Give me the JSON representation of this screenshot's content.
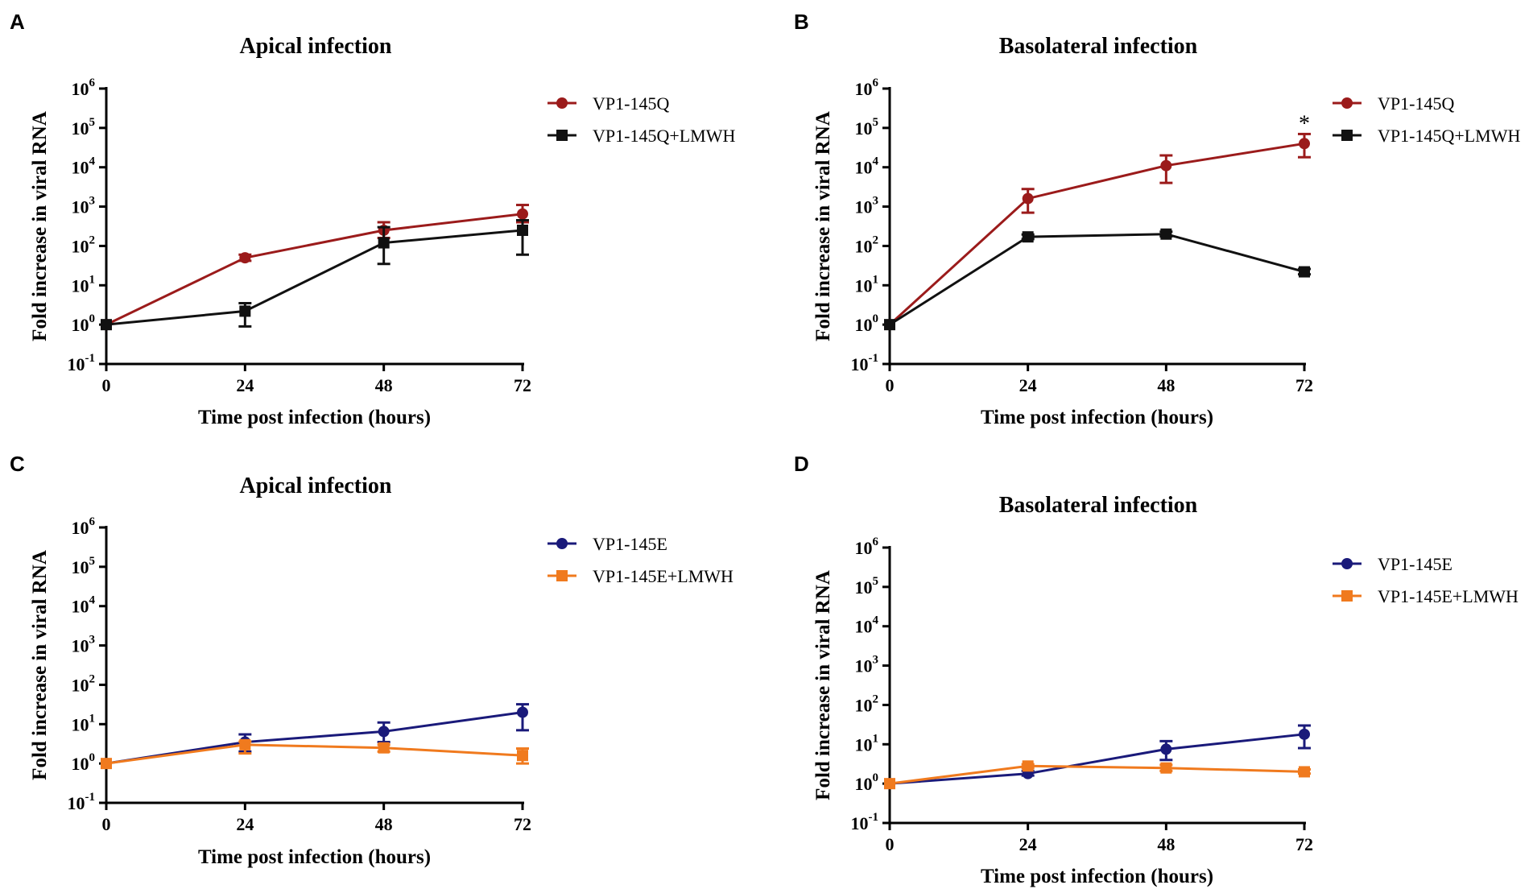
{
  "colors": {
    "red": "#9b1b1b",
    "black": "#111111",
    "blue": "#1a1a7a",
    "orange": "#f07a1e"
  },
  "chart_data": [
    {
      "panel_label": "A",
      "type": "line",
      "title": "Apical infection",
      "xlabel": "Time post infection (hours)",
      "ylabel": "Fold increase in viral RNA",
      "x": [
        0,
        24,
        48,
        72
      ],
      "xticks": [
        "0",
        "24",
        "48",
        "72"
      ],
      "yscale": "log",
      "yexp_range": [
        -1,
        6
      ],
      "ytick_exponents": [
        "-1",
        "0",
        "1",
        "2",
        "3",
        "4",
        "5",
        "6"
      ],
      "legend_position": "top-right",
      "series": [
        {
          "name": "VP1-145Q",
          "marker": "circle",
          "color": "#9b1b1b",
          "values": [
            1,
            50,
            250,
            650
          ],
          "err_low": [
            1,
            42,
            160,
            400
          ],
          "err_high": [
            1,
            60,
            400,
            1100
          ]
        },
        {
          "name": "VP1-145Q+LMWH",
          "marker": "square",
          "color": "#111111",
          "values": [
            1,
            2.2,
            120,
            250
          ],
          "err_low": [
            1,
            0.9,
            35,
            60
          ],
          "err_high": [
            1,
            3.5,
            300,
            450
          ]
        }
      ]
    },
    {
      "panel_label": "B",
      "type": "line",
      "title": "Basolateral infection",
      "xlabel": "Time post infection (hours)",
      "ylabel": "Fold increase in viral RNA",
      "x": [
        0,
        24,
        48,
        72
      ],
      "xticks": [
        "0",
        "24",
        "48",
        "72"
      ],
      "yscale": "log",
      "yexp_range": [
        -1,
        6
      ],
      "ytick_exponents": [
        "-1",
        "0",
        "1",
        "2",
        "3",
        "4",
        "5",
        "6"
      ],
      "legend_position": "top-right",
      "annotation": {
        "text": "*",
        "x": 72,
        "y": 150000
      },
      "series": [
        {
          "name": "VP1-145Q",
          "marker": "circle",
          "color": "#9b1b1b",
          "values": [
            1,
            1600,
            11000,
            40000
          ],
          "err_low": [
            1,
            700,
            4000,
            18000
          ],
          "err_high": [
            1,
            2800,
            20000,
            70000
          ]
        },
        {
          "name": "VP1-145Q+LMWH",
          "marker": "square",
          "color": "#111111",
          "values": [
            1,
            170,
            200,
            22
          ],
          "err_low": [
            1,
            150,
            175,
            19
          ],
          "err_high": [
            1,
            195,
            230,
            26
          ]
        }
      ]
    },
    {
      "panel_label": "C",
      "type": "line",
      "title": "Apical infection",
      "xlabel": "Time post infection (hours)",
      "ylabel": "Fold increase in viral RNA",
      "x": [
        0,
        24,
        48,
        72
      ],
      "xticks": [
        "0",
        "24",
        "48",
        "72"
      ],
      "yscale": "log",
      "yexp_range": [
        -1,
        6
      ],
      "ytick_exponents": [
        "-1",
        "0",
        "1",
        "2",
        "3",
        "4",
        "5",
        "6"
      ],
      "legend_position": "top-right",
      "series": [
        {
          "name": "VP1-145E",
          "marker": "circle",
          "color": "#1a1a7a",
          "values": [
            1,
            3.5,
            6.5,
            20
          ],
          "err_low": [
            1,
            2,
            3.5,
            7
          ],
          "err_high": [
            1,
            5.5,
            11,
            32
          ]
        },
        {
          "name": "VP1-145E+LMWH",
          "marker": "square",
          "color": "#f07a1e",
          "values": [
            1,
            3,
            2.5,
            1.6
          ],
          "err_low": [
            1,
            1.8,
            2,
            1
          ],
          "err_high": [
            1,
            3.6,
            3,
            2.4
          ]
        }
      ]
    },
    {
      "panel_label": "D",
      "type": "line",
      "title": "Basolateral infection",
      "xlabel": "Time post infection (hours)",
      "ylabel": "Fold increase in viral RNA",
      "x": [
        0,
        24,
        48,
        72
      ],
      "xticks": [
        "0",
        "24",
        "48",
        "72"
      ],
      "yscale": "log",
      "yexp_range": [
        -1,
        6
      ],
      "ytick_exponents": [
        "-1",
        "0",
        "1",
        "2",
        "3",
        "4",
        "5",
        "6"
      ],
      "legend_position": "top-right",
      "series": [
        {
          "name": "VP1-145E",
          "marker": "circle",
          "color": "#1a1a7a",
          "values": [
            1,
            1.8,
            7.5,
            18
          ],
          "err_low": [
            1,
            1.6,
            4,
            8
          ],
          "err_high": [
            1,
            2.1,
            12,
            30
          ]
        },
        {
          "name": "VP1-145E+LMWH",
          "marker": "square",
          "color": "#f07a1e",
          "values": [
            1,
            2.8,
            2.5,
            2
          ],
          "err_low": [
            1,
            2.5,
            2.1,
            1.8
          ],
          "err_high": [
            1,
            3.1,
            3,
            2.3
          ]
        }
      ]
    }
  ]
}
